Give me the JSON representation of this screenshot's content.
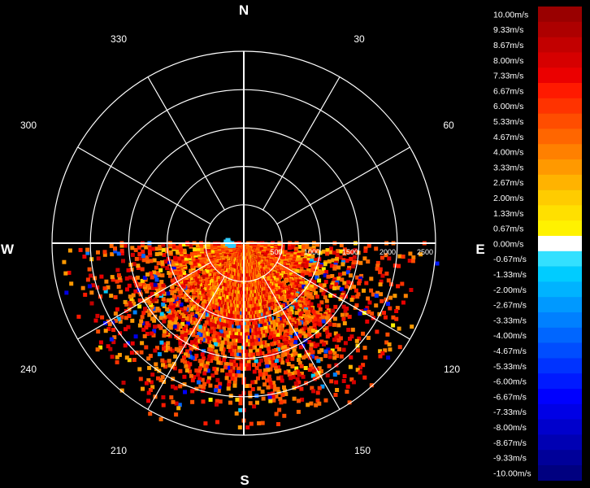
{
  "chart_data": {
    "type": "polar_radar",
    "compass_labels": {
      "north": "N",
      "east": "E",
      "south": "S",
      "west": "W"
    },
    "bearing_labels": [
      "30",
      "60",
      "120",
      "150",
      "210",
      "240",
      "300",
      "330"
    ],
    "bearings_deg": [
      30,
      60,
      120,
      150,
      210,
      240,
      300,
      330
    ],
    "range_rings": [
      500,
      1000,
      1500,
      2000,
      2500
    ],
    "range_labels": [
      "500",
      "1000",
      "1500",
      "2000",
      "2500"
    ],
    "max_range": 2500,
    "unit": "m/s",
    "colorbar": [
      {
        "label": "10.00m/s",
        "value": 10.0,
        "color": "#990000"
      },
      {
        "label": "9.33m/s",
        "value": 9.33,
        "color": "#ad0000"
      },
      {
        "label": "8.67m/s",
        "value": 8.67,
        "color": "#c20000"
      },
      {
        "label": "8.00m/s",
        "value": 8.0,
        "color": "#d60000"
      },
      {
        "label": "7.33m/s",
        "value": 7.33,
        "color": "#eb0000"
      },
      {
        "label": "6.67m/s",
        "value": 6.67,
        "color": "#ff1a00"
      },
      {
        "label": "6.00m/s",
        "value": 6.0,
        "color": "#ff3300"
      },
      {
        "label": "5.33m/s",
        "value": 5.33,
        "color": "#ff4d00"
      },
      {
        "label": "4.67m/s",
        "value": 4.67,
        "color": "#ff6600"
      },
      {
        "label": "4.00m/s",
        "value": 4.0,
        "color": "#ff8000"
      },
      {
        "label": "3.33m/s",
        "value": 3.33,
        "color": "#ff9900"
      },
      {
        "label": "2.67m/s",
        "value": 2.67,
        "color": "#ffb300"
      },
      {
        "label": "2.00m/s",
        "value": 2.0,
        "color": "#ffcc00"
      },
      {
        "label": "1.33m/s",
        "value": 1.33,
        "color": "#ffe000"
      },
      {
        "label": "0.67m/s",
        "value": 0.67,
        "color": "#fff200"
      },
      {
        "label": "0.00m/s",
        "value": 0.0,
        "color": "#ffffff"
      },
      {
        "label": "-0.67m/s",
        "value": -0.67,
        "color": "#33e0ff"
      },
      {
        "label": "-1.33m/s",
        "value": -1.33,
        "color": "#00ccff"
      },
      {
        "label": "-2.00m/s",
        "value": -2.0,
        "color": "#00b3ff"
      },
      {
        "label": "-2.67m/s",
        "value": -2.67,
        "color": "#0099ff"
      },
      {
        "label": "-3.33m/s",
        "value": -3.33,
        "color": "#0080ff"
      },
      {
        "label": "-4.00m/s",
        "value": -4.0,
        "color": "#0066ff"
      },
      {
        "label": "-4.67m/s",
        "value": -4.67,
        "color": "#004dff"
      },
      {
        "label": "-5.33m/s",
        "value": -5.33,
        "color": "#0033ff"
      },
      {
        "label": "-6.00m/s",
        "value": -6.0,
        "color": "#001aff"
      },
      {
        "label": "-6.67m/s",
        "value": -6.67,
        "color": "#0000ff"
      },
      {
        "label": "-7.33m/s",
        "value": -7.33,
        "color": "#0000e6"
      },
      {
        "label": "-8.00m/s",
        "value": -8.0,
        "color": "#0000cc"
      },
      {
        "label": "-8.67m/s",
        "value": -8.67,
        "color": "#0000b3"
      },
      {
        "label": "-9.33m/s",
        "value": -9.33,
        "color": "#000099"
      },
      {
        "label": "-10.00m/s",
        "value": -10.0,
        "color": "#000080"
      }
    ],
    "data_coverage": {
      "azimuth_start_deg": 90,
      "azimuth_end_deg": 270,
      "dominant_range_m": [
        0,
        1800
      ],
      "dominant_velocity_mps": [
        3,
        8
      ]
    }
  }
}
